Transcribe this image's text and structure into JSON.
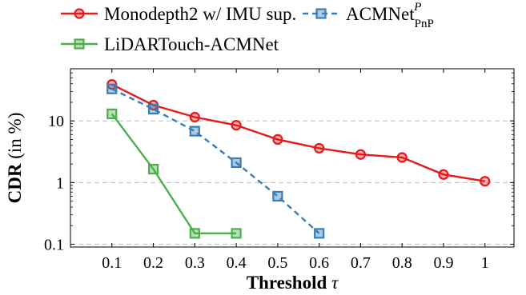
{
  "chart_data": {
    "type": "line",
    "xlabel": {
      "bold": "Threshold",
      "symbol": "τ"
    },
    "ylabel": {
      "bold": "CDR",
      "rest": "(in %)"
    },
    "y_scale": "log",
    "ylim": [
      0.09,
      70
    ],
    "xlim": [
      0.0,
      1.07
    ],
    "x_ticks": [
      0.1,
      0.2,
      0.3,
      0.4,
      0.5,
      0.6,
      0.7,
      0.8,
      0.9,
      1.0
    ],
    "x_tick_labels": [
      "0.1",
      "0.2",
      "0.3",
      "0.4",
      "0.5",
      "0.6",
      "0.7",
      "0.8",
      "0.9",
      "1"
    ],
    "y_ticks": [
      0.1,
      1,
      10
    ],
    "y_tick_labels": [
      "0.1",
      "1",
      "10"
    ],
    "grid": "horizontal dashed at major y ticks",
    "legend_position": "top",
    "series": [
      {
        "name": "Monodepth2 w/ IMU sup.",
        "color": "#e41a1c",
        "marker": "circle",
        "line": "solid",
        "x": [
          0.1,
          0.2,
          0.3,
          0.4,
          0.5,
          0.6,
          0.7,
          0.8,
          0.9,
          1.0
        ],
        "y": [
          39,
          18,
          11.5,
          8.5,
          5.0,
          3.6,
          2.85,
          2.55,
          1.35,
          1.05
        ]
      },
      {
        "name": "ACMNet",
        "name_sup": "P",
        "name_sub": "PnP",
        "color": "#377eb8",
        "marker": "square",
        "line": "dashed",
        "x": [
          0.1,
          0.2,
          0.3,
          0.4,
          0.5,
          0.6
        ],
        "y": [
          33,
          15.5,
          6.8,
          2.1,
          0.6,
          0.15
        ]
      },
      {
        "name": "LiDARTouch-ACMNet",
        "color": "#4daf4a",
        "marker": "square",
        "line": "solid",
        "x": [
          0.1,
          0.2,
          0.3,
          0.4
        ],
        "y": [
          13,
          1.65,
          0.15,
          0.15
        ]
      }
    ]
  }
}
